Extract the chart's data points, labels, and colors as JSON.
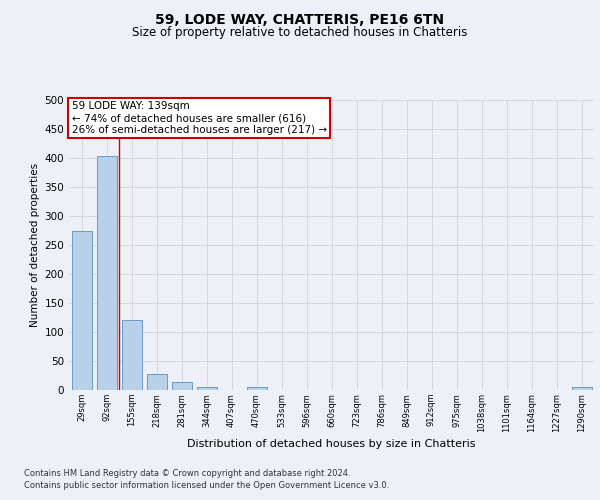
{
  "title1": "59, LODE WAY, CHATTERIS, PE16 6TN",
  "title2": "Size of property relative to detached houses in Chatteris",
  "xlabel": "Distribution of detached houses by size in Chatteris",
  "ylabel": "Number of detached properties",
  "categories": [
    "29sqm",
    "92sqm",
    "155sqm",
    "218sqm",
    "281sqm",
    "344sqm",
    "407sqm",
    "470sqm",
    "533sqm",
    "596sqm",
    "660sqm",
    "723sqm",
    "786sqm",
    "849sqm",
    "912sqm",
    "975sqm",
    "1038sqm",
    "1101sqm",
    "1164sqm",
    "1227sqm",
    "1290sqm"
  ],
  "values": [
    275,
    403,
    120,
    27,
    13,
    5,
    0,
    5,
    0,
    0,
    0,
    0,
    0,
    0,
    0,
    0,
    0,
    0,
    0,
    0,
    5
  ],
  "bar_color": "#b8d0e8",
  "bar_edge_color": "#6699cc",
  "vline_x": 1.5,
  "vline_color": "#cc0000",
  "annotation_text": "59 LODE WAY: 139sqm\n← 74% of detached houses are smaller (616)\n26% of semi-detached houses are larger (217) →",
  "annotation_box_color": "#ffffff",
  "annotation_box_edge": "#cc0000",
  "ylim": [
    0,
    500
  ],
  "yticks": [
    0,
    50,
    100,
    150,
    200,
    250,
    300,
    350,
    400,
    450,
    500
  ],
  "footer1": "Contains HM Land Registry data © Crown copyright and database right 2024.",
  "footer2": "Contains public sector information licensed under the Open Government Licence v3.0.",
  "bg_color": "#edf1f7",
  "plot_bg_color": "#edf1f7"
}
